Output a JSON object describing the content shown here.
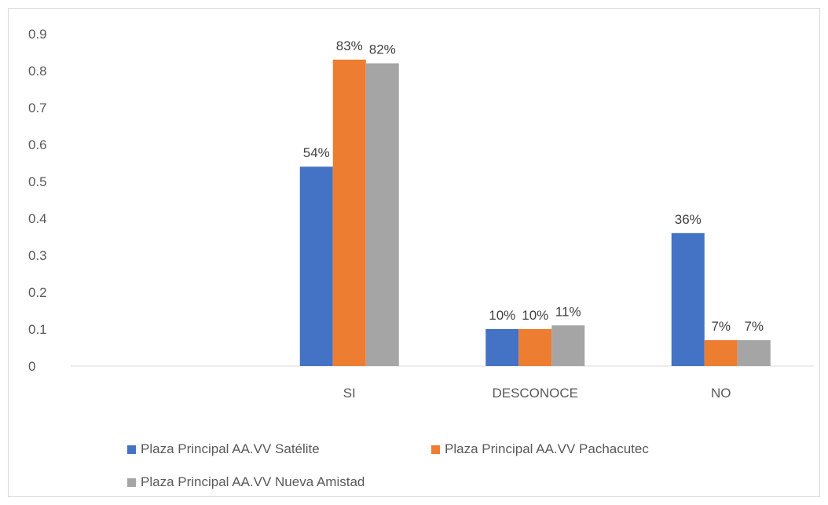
{
  "chart_data": {
    "type": "bar",
    "categories": [
      "",
      "SI",
      "DESCONOCE",
      "NO"
    ],
    "series": [
      {
        "name": "Plaza Principal AA.VV Satélite",
        "color": "#4472C4",
        "values": [
          null,
          0.54,
          0.1,
          0.36
        ],
        "labels": [
          "",
          "54%",
          "10%",
          "36%"
        ]
      },
      {
        "name": "Plaza Principal AA.VV Pachacutec",
        "color": "#ED7D31",
        "values": [
          null,
          0.83,
          0.1,
          0.07
        ],
        "labels": [
          "",
          "83%",
          "10%",
          "7%"
        ]
      },
      {
        "name": "Plaza Principal AA.VV Nueva Amistad",
        "color": "#A5A5A5",
        "values": [
          null,
          0.82,
          0.11,
          0.07
        ],
        "labels": [
          "",
          "82%",
          "11%",
          "7%"
        ]
      }
    ],
    "y_ticks": [
      "0",
      "0.1",
      "0.2",
      "0.3",
      "0.4",
      "0.5",
      "0.6",
      "0.7",
      "0.8",
      "0.9"
    ],
    "ylim": [
      0,
      0.9
    ],
    "grid": false,
    "legend_position": "bottom"
  }
}
